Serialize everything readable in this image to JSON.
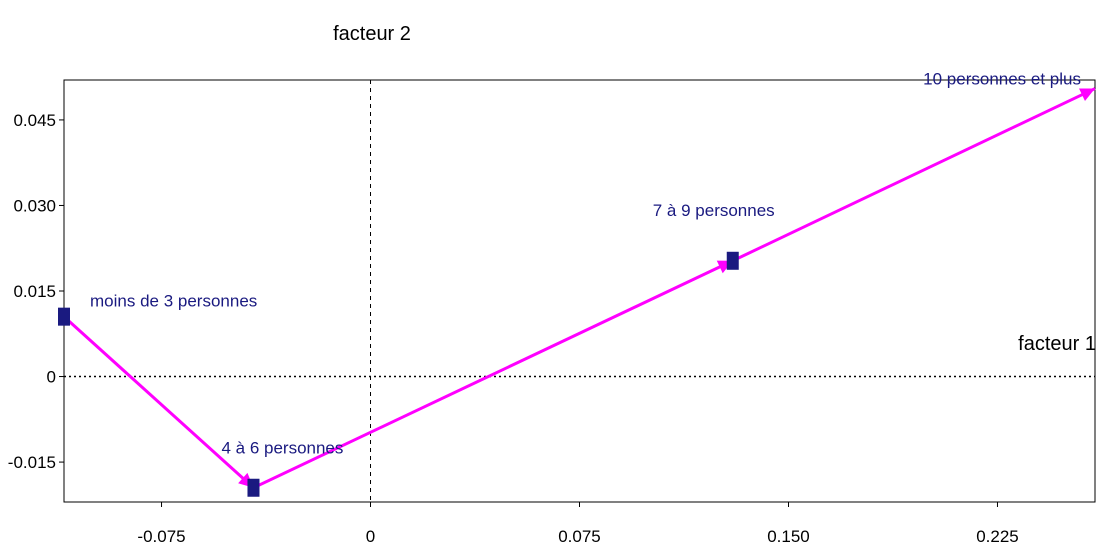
{
  "chart_data": {
    "type": "line",
    "title": "",
    "xlabel": "facteur 1",
    "ylabel": "facteur 2",
    "xlim": [
      -0.11,
      0.26
    ],
    "ylim": [
      -0.022,
      0.052
    ],
    "x_ticks": [
      -0.075,
      0,
      0.075,
      0.15,
      0.225
    ],
    "x_tick_labels": [
      "-0.075",
      "0",
      "0.075",
      "0.150",
      "0.225"
    ],
    "y_ticks": [
      -0.015,
      0,
      0.015,
      0.03,
      0.045
    ],
    "y_tick_labels": [
      "-0.015",
      "0",
      "0.015",
      "0.030",
      "0.045"
    ],
    "grid": false,
    "origin_lines": true,
    "series": [
      {
        "color": "#ff00ff",
        "marker_color": "#1a1a80",
        "points": [
          {
            "label": "moins de 3 personnes",
            "x": -0.11,
            "y": 0.0105
          },
          {
            "label": "4 à 6 personnes",
            "x": -0.042,
            "y": -0.0195
          },
          {
            "label": "7 à 9 personnes",
            "x": 0.13,
            "y": 0.0203
          },
          {
            "label": "10 personnes et plus",
            "x": 0.26,
            "y": 0.0505
          }
        ]
      }
    ]
  }
}
